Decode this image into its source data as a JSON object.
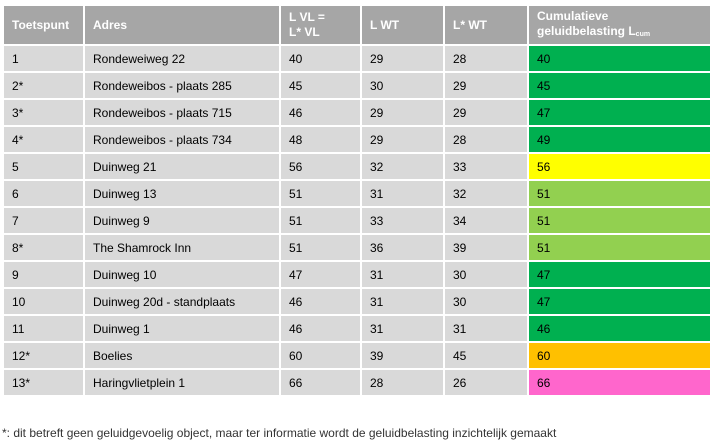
{
  "table": {
    "headers": [
      [
        "Toetspunt"
      ],
      [
        "Adres"
      ],
      [
        "L VL =",
        "L* VL"
      ],
      [
        "L WT"
      ],
      [
        "L* WT"
      ],
      [
        "Cumulatieve",
        "geluidbelasting L"
      ]
    ],
    "cum_subscript": "cum",
    "rows": [
      {
        "cells": [
          "1",
          "Rondeweiweg 22",
          "40",
          "29",
          "28",
          "40"
        ],
        "color": "#00b050"
      },
      {
        "cells": [
          "2*",
          "Rondeweibos - plaats 285",
          "45",
          "30",
          "29",
          "45"
        ],
        "color": "#00b050"
      },
      {
        "cells": [
          "3*",
          "Rondeweibos - plaats 715",
          "46",
          "29",
          "29",
          "47"
        ],
        "color": "#00b050"
      },
      {
        "cells": [
          "4*",
          "Rondeweibos - plaats 734",
          "48",
          "29",
          "28",
          "49"
        ],
        "color": "#00b050"
      },
      {
        "cells": [
          "5",
          "Duinweg 21",
          "56",
          "32",
          "33",
          "56"
        ],
        "color": "#ffff00"
      },
      {
        "cells": [
          "6",
          "Duinweg 13",
          "51",
          "31",
          "32",
          "51"
        ],
        "color": "#92d050"
      },
      {
        "cells": [
          "7",
          "Duinweg 9",
          "51",
          "33",
          "34",
          "51"
        ],
        "color": "#92d050"
      },
      {
        "cells": [
          "8*",
          "The Shamrock Inn",
          "51",
          "36",
          "39",
          "51"
        ],
        "color": "#92d050"
      },
      {
        "cells": [
          "9",
          "Duinweg 10",
          "47",
          "31",
          "30",
          "47"
        ],
        "color": "#00b050"
      },
      {
        "cells": [
          "10",
          "Duinweg 20d - standplaats",
          "46",
          "31",
          "30",
          "47"
        ],
        "color": "#00b050"
      },
      {
        "cells": [
          "11",
          "Duinweg 1",
          "46",
          "31",
          "31",
          "46"
        ],
        "color": "#00b050"
      },
      {
        "cells": [
          "12*",
          "Boelies",
          "60",
          "39",
          "45",
          "60"
        ],
        "color": "#ffc000"
      },
      {
        "cells": [
          "13*",
          "Haringvlietplein 1",
          "66",
          "28",
          "26",
          "66"
        ],
        "color": "#ff66cc"
      }
    ]
  },
  "footnote": "*: dit betreft geen geluidgevoelig object, maar ter informatie wordt de geluidbelasting inzichtelijk gemaakt"
}
